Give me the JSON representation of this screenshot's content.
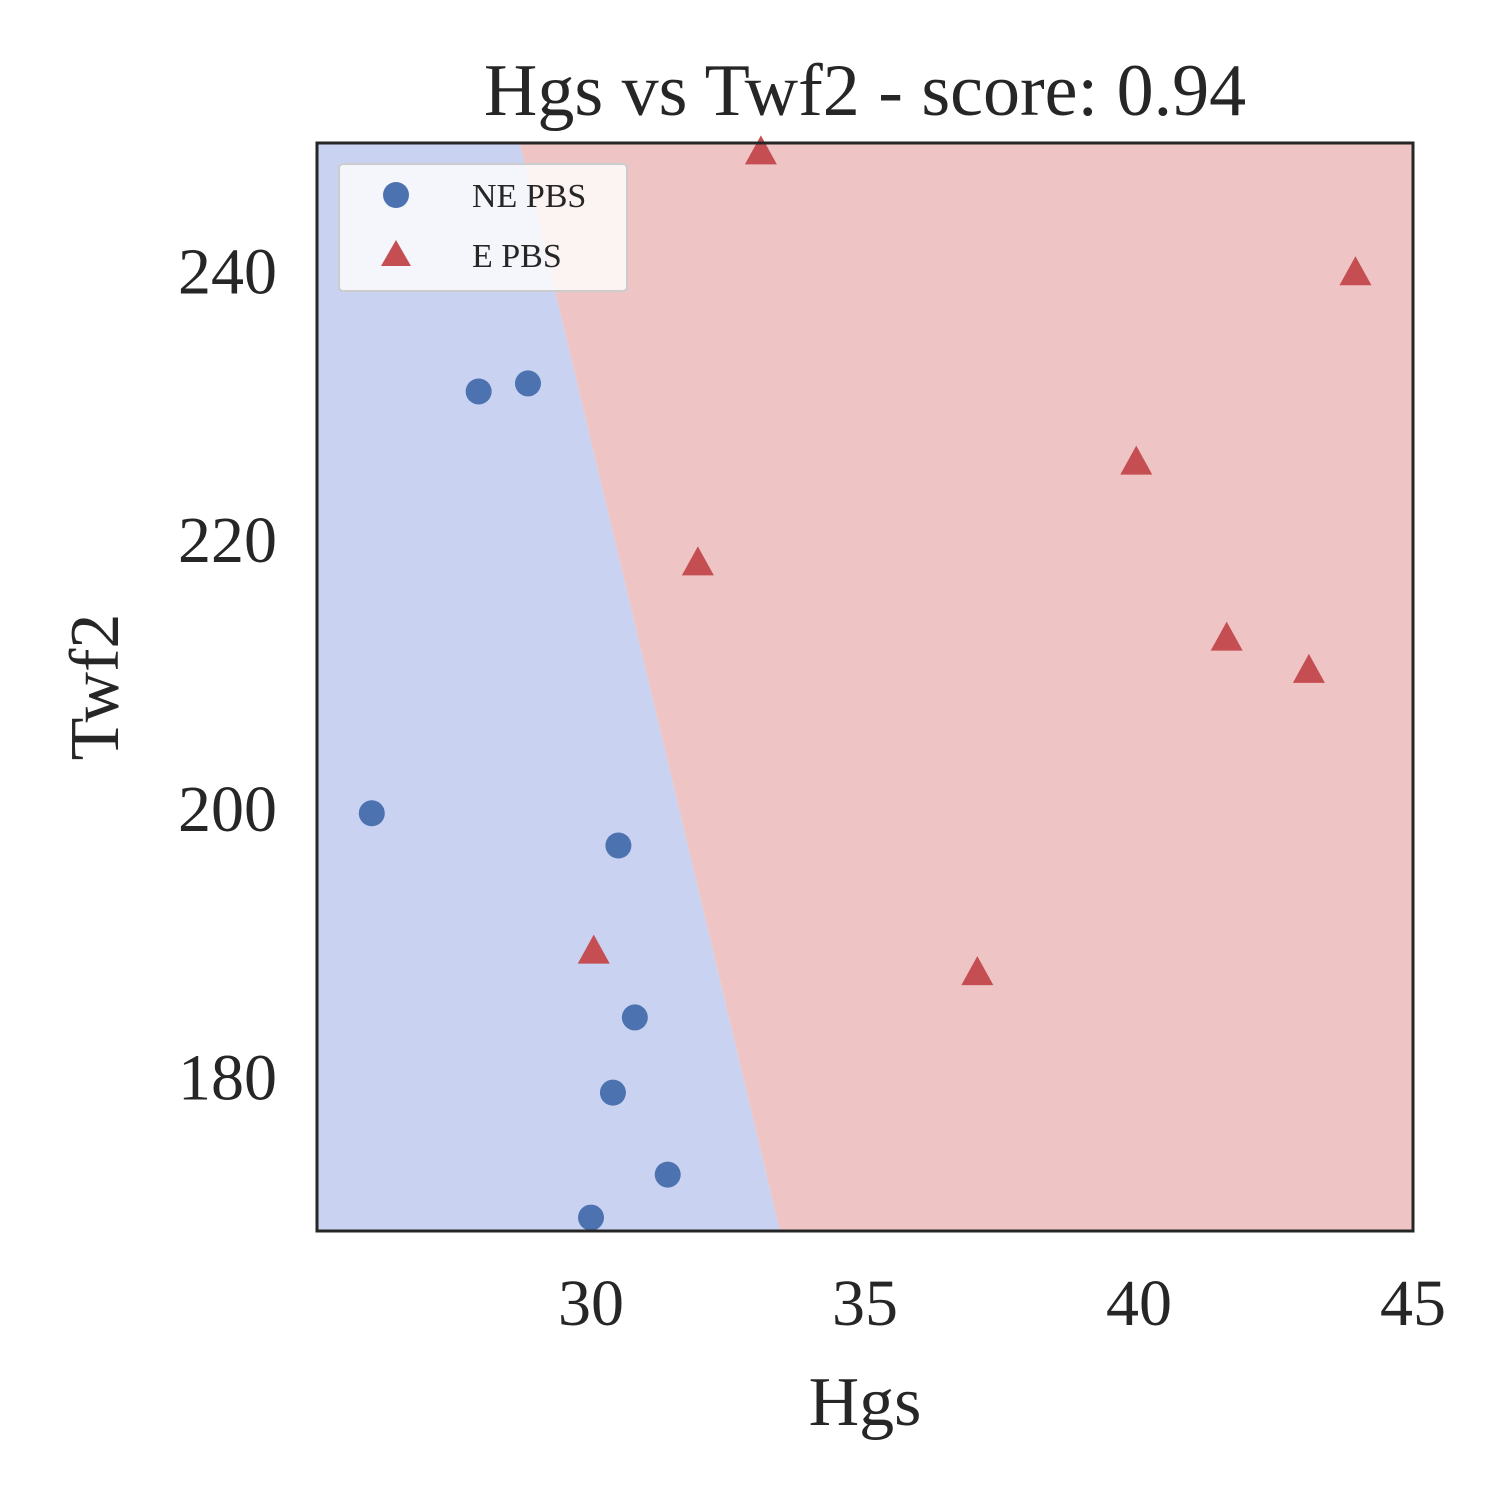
{
  "chart_data": {
    "type": "scatter",
    "title": "Hgs vs Twf2 - score: 0.94",
    "xlabel": "Hgs",
    "ylabel": "Twf2",
    "xlim": [
      25.0,
      45.0
    ],
    "ylim": [
      168.5,
      249.5
    ],
    "x_ticks": [
      30,
      35,
      40,
      45
    ],
    "y_ticks": [
      180,
      200,
      220,
      240
    ],
    "grid": false,
    "legend_position": "top-left",
    "decision_boundary": {
      "points": [
        [
          28.7,
          249.5
        ],
        [
          33.45,
          168.5
        ]
      ],
      "left_class": "NE PBS",
      "right_class": "E PBS",
      "left_color": "#c9d2f1",
      "right_color": "#eec4c4"
    },
    "series": [
      {
        "name": "NE PBS",
        "marker": "circle",
        "color": "#4c72b0",
        "points": [
          [
            26.0,
            199.6
          ],
          [
            27.95,
            231.0
          ],
          [
            28.85,
            231.6
          ],
          [
            30.0,
            169.5
          ],
          [
            30.4,
            178.8
          ],
          [
            30.5,
            197.2
          ],
          [
            30.8,
            184.4
          ],
          [
            31.4,
            172.7
          ]
        ]
      },
      {
        "name": "E PBS",
        "marker": "triangle",
        "color": "#c44e52",
        "points": [
          [
            30.05,
            189.3
          ],
          [
            31.95,
            218.2
          ],
          [
            33.1,
            248.8
          ],
          [
            37.05,
            187.7
          ],
          [
            39.95,
            225.7
          ],
          [
            41.6,
            212.6
          ],
          [
            43.1,
            210.2
          ],
          [
            43.95,
            239.8
          ]
        ]
      }
    ]
  }
}
